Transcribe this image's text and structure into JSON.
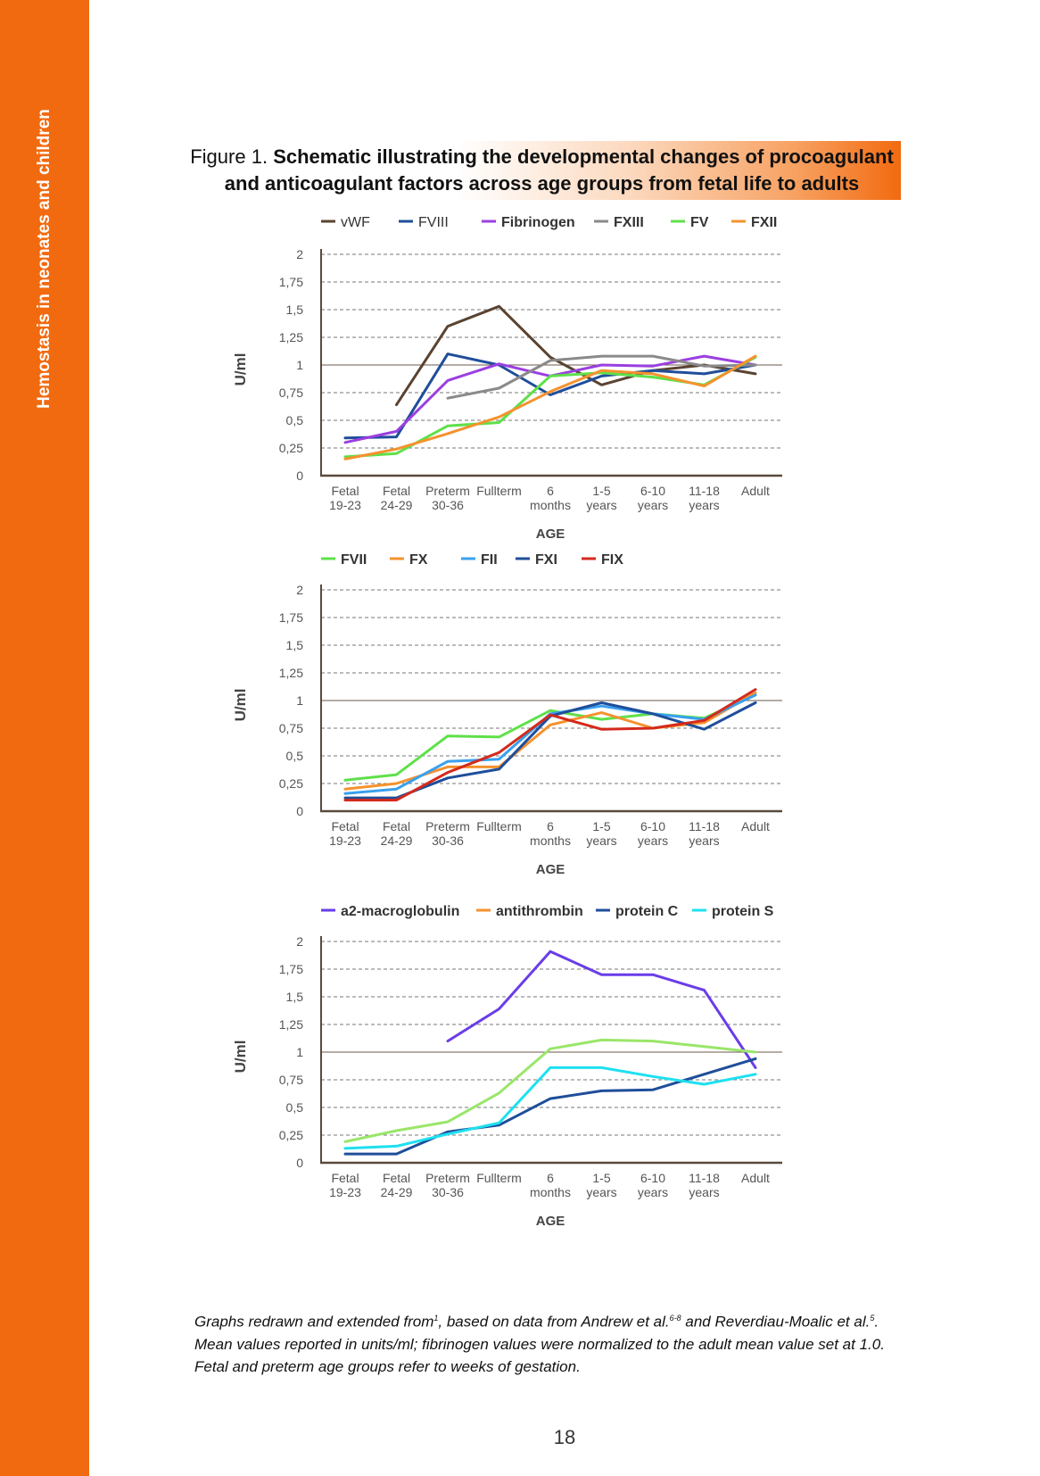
{
  "side_label": "Hemostasis in neonates and children",
  "figure": {
    "label": "Figure 1.",
    "title_line1": "Schematic illustrating the developmental changes of procoagulant",
    "title_line2": "and anticoagulant factors across age groups from fetal life to adults"
  },
  "colors": {
    "band": "#f26a0f",
    "axis": "#5a4a3c"
  },
  "chart_data": [
    {
      "type": "line",
      "categories": [
        [
          "Fetal",
          "19-23"
        ],
        [
          "Fetal",
          "24-29"
        ],
        [
          "Preterm",
          "30-36"
        ],
        [
          "Fullterm",
          ""
        ],
        [
          "6",
          "months"
        ],
        [
          "1-5",
          "years"
        ],
        [
          "6-10",
          "years"
        ],
        [
          "11-18",
          "years"
        ],
        [
          "Adult",
          ""
        ]
      ],
      "xlabel": "AGE",
      "ylabel": "U/ml",
      "ylim": [
        0,
        2
      ],
      "yticks": [
        "0",
        "0,25",
        "0,5",
        "0,75",
        "1",
        "1,25",
        "1,5",
        "1,75",
        "2"
      ],
      "series": [
        {
          "name": "vWF",
          "color": "#5a4331",
          "values": [
            null,
            0.64,
            1.35,
            1.53,
            1.07,
            0.82,
            0.95,
            1.0,
            0.92
          ]
        },
        {
          "name": "FVIII",
          "color": "#1f4e9a",
          "values": [
            0.34,
            0.35,
            1.1,
            1.0,
            0.73,
            0.9,
            0.95,
            0.92,
            1.0
          ]
        },
        {
          "name": "Fibrinogen",
          "color": "#9b3fe0",
          "values": [
            0.3,
            0.4,
            0.86,
            1.01,
            0.9,
            1.0,
            0.99,
            1.08,
            1.0
          ]
        },
        {
          "name": "FXIII",
          "color": "#8a8a8a",
          "values": [
            null,
            null,
            0.7,
            0.79,
            1.04,
            1.08,
            1.08,
            0.99,
            1.0
          ]
        },
        {
          "name": "FV",
          "color": "#5fe04a",
          "values": [
            0.17,
            0.2,
            0.45,
            0.48,
            0.9,
            0.93,
            0.89,
            0.82,
            1.07
          ]
        },
        {
          "name": "FXII",
          "color": "#f5922e",
          "values": [
            0.15,
            0.24,
            0.38,
            0.53,
            0.76,
            0.95,
            0.92,
            0.81,
            1.08
          ]
        }
      ]
    },
    {
      "type": "line",
      "categories": [
        [
          "Fetal",
          "19-23"
        ],
        [
          "Fetal",
          "24-29"
        ],
        [
          "Preterm",
          "30-36"
        ],
        [
          "Fullterm",
          ""
        ],
        [
          "6",
          "months"
        ],
        [
          "1-5",
          "years"
        ],
        [
          "6-10",
          "years"
        ],
        [
          "11-18",
          "years"
        ],
        [
          "Adult",
          ""
        ]
      ],
      "xlabel": "AGE",
      "ylabel": "U/ml",
      "ylim": [
        0,
        2
      ],
      "yticks": [
        "0",
        "0,25",
        "0,5",
        "0,75",
        "1",
        "1,25",
        "1,5",
        "1,75",
        "2"
      ],
      "series": [
        {
          "name": "FVII",
          "color": "#5fe04a",
          "values": [
            0.28,
            0.33,
            0.68,
            0.67,
            0.91,
            0.83,
            0.88,
            0.84,
            1.05
          ]
        },
        {
          "name": "FX",
          "color": "#f5922e",
          "values": [
            0.2,
            0.25,
            0.4,
            0.4,
            0.78,
            0.89,
            0.75,
            0.8,
            1.07
          ]
        },
        {
          "name": "FII",
          "color": "#3aa0ee",
          "values": [
            0.16,
            0.2,
            0.45,
            0.47,
            0.88,
            0.95,
            0.88,
            0.83,
            1.05
          ]
        },
        {
          "name": "FXI",
          "color": "#1f4e9a",
          "values": [
            0.12,
            0.12,
            0.3,
            0.38,
            0.86,
            0.98,
            0.88,
            0.74,
            0.98
          ]
        },
        {
          "name": "FIX",
          "color": "#d42a1c",
          "values": [
            0.1,
            0.1,
            0.35,
            0.53,
            0.87,
            0.74,
            0.75,
            0.82,
            1.1
          ]
        }
      ]
    },
    {
      "type": "line",
      "categories": [
        [
          "Fetal",
          "19-23"
        ],
        [
          "Fetal",
          "24-29"
        ],
        [
          "Preterm",
          "30-36"
        ],
        [
          "Fullterm",
          ""
        ],
        [
          "6",
          "months"
        ],
        [
          "1-5",
          "years"
        ],
        [
          "6-10",
          "years"
        ],
        [
          "11-18",
          "years"
        ],
        [
          "Adult",
          ""
        ]
      ],
      "xlabel": "AGE",
      "ylabel": "U/ml",
      "ylim": [
        0,
        2
      ],
      "yticks": [
        "0",
        "0,25",
        "0,5",
        "0,75",
        "1",
        "1,25",
        "1,5",
        "1,75",
        "2"
      ],
      "series": [
        {
          "name": "a2-macroglobulin",
          "color": "#6a3de8",
          "values": [
            null,
            null,
            1.1,
            1.39,
            1.91,
            1.7,
            1.7,
            1.56,
            0.86
          ]
        },
        {
          "name": "antithrombin",
          "color": "#9ae66a",
          "values": [
            0.19,
            0.29,
            0.37,
            0.63,
            1.03,
            1.11,
            1.1,
            1.05,
            1.0
          ]
        },
        {
          "name": "protein C",
          "color": "#1f4e9a",
          "values": [
            0.08,
            0.08,
            0.28,
            0.34,
            0.58,
            0.65,
            0.66,
            0.8,
            0.94
          ]
        },
        {
          "name": "protein S",
          "color": "#1ee0f0",
          "values": [
            0.13,
            0.15,
            0.26,
            0.36,
            0.86,
            0.86,
            0.78,
            0.71,
            0.8
          ]
        }
      ],
      "legend_colors_override": {
        "antithrombin": "#f5922e"
      }
    }
  ],
  "caption": {
    "line1_a": "Graphs redrawn and extended from",
    "line1_sup1": "1",
    "line1_b": ", based on data from Andrew et al.",
    "line1_sup2": "6-8",
    "line1_c": " and Reverdiau-Moalic et al.",
    "line1_sup3": "5",
    "line1_d": ".",
    "line2": "Mean values reported in units/ml; fibrinogen values were normalized to the adult mean value set at 1.0.",
    "line3": "Fetal and preterm age groups refer to weeks of gestation."
  },
  "page_number": "18"
}
